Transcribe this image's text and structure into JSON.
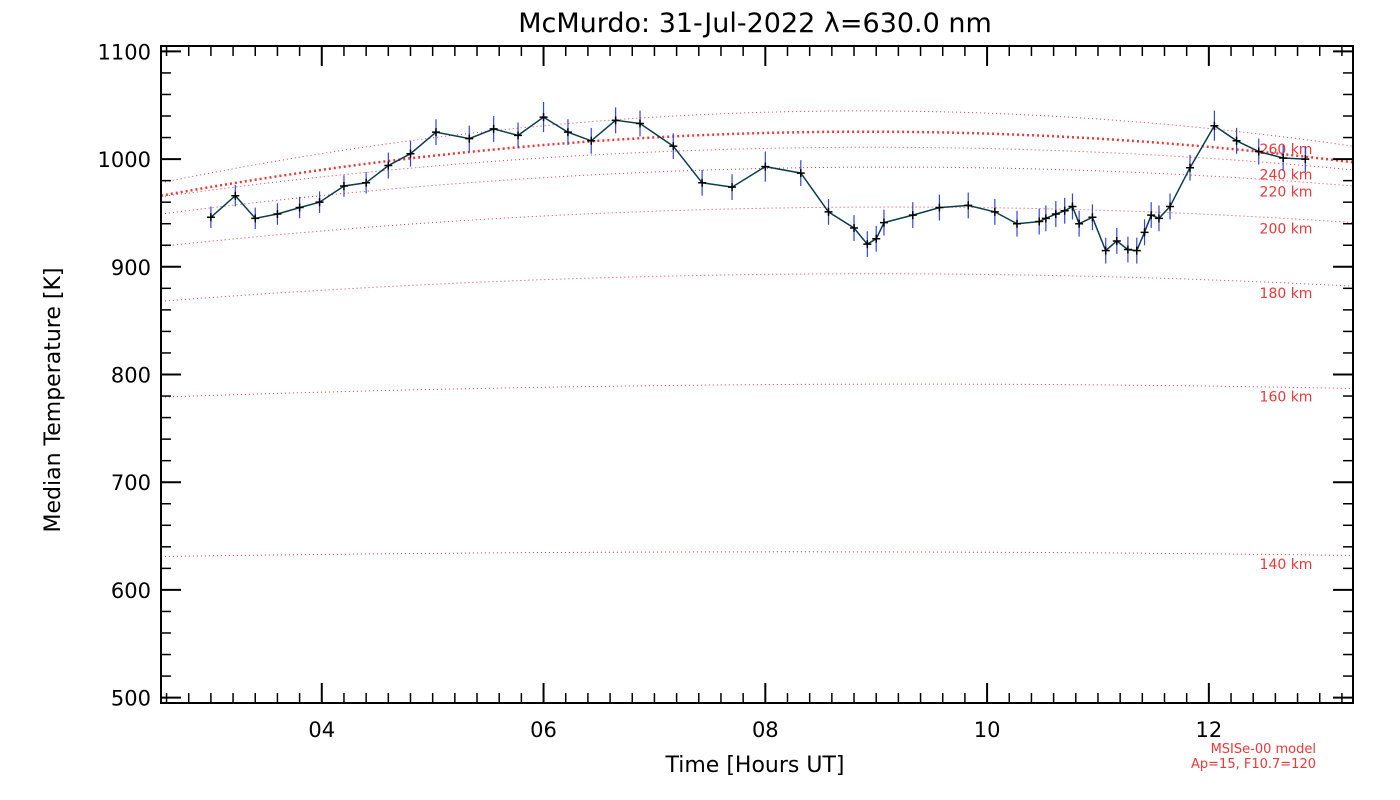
{
  "chart_data": {
    "type": "line",
    "title": "McMurdo: 31-Jul-2022 λ=630.0 nm",
    "xlabel": "Time [Hours UT]",
    "ylabel": "Median Temperature [K]",
    "xlim": [
      2.55,
      13.3
    ],
    "ylim": [
      495,
      1105
    ],
    "xticks": [
      4,
      6,
      8,
      10,
      12
    ],
    "xtick_labels": [
      "04",
      "06",
      "08",
      "10",
      "12"
    ],
    "yticks": [
      500,
      600,
      700,
      800,
      900,
      1000,
      1100
    ],
    "ytick_labels": [
      "500",
      "600",
      "700",
      "800",
      "900",
      "1000",
      "1100"
    ],
    "grid": false,
    "colors": {
      "data_line": "#0b3d4f",
      "error_bar": "#3344dd",
      "marker": "#000000",
      "model": "#e8383a"
    },
    "series": [
      {
        "x": [
          3.0,
          3.22,
          3.4,
          3.6,
          3.8,
          3.98,
          4.2,
          4.4,
          4.6,
          4.8,
          5.03,
          5.33,
          5.55,
          5.77,
          6.0,
          6.22,
          6.43,
          6.65,
          6.87,
          7.17,
          7.43,
          7.7,
          8.0,
          8.32,
          8.57,
          8.8,
          8.92,
          9.0,
          9.07,
          9.33,
          9.57,
          9.83,
          10.07,
          10.27,
          10.47,
          10.53,
          10.62,
          10.7,
          10.77,
          10.83,
          10.95,
          11.07,
          11.17,
          11.27,
          11.35,
          11.42,
          11.48,
          11.55,
          11.65,
          11.83,
          12.05,
          12.25,
          12.45,
          12.67,
          12.87
        ],
        "y": [
          946,
          966,
          945,
          949,
          955,
          960,
          975,
          978,
          994,
          1005,
          1025,
          1019,
          1028,
          1022,
          1039,
          1025,
          1017,
          1036,
          1033,
          1012,
          978,
          974,
          993,
          987,
          951,
          936,
          921,
          926,
          941,
          948,
          955,
          957,
          951,
          940,
          942,
          945,
          949,
          952,
          956,
          940,
          946,
          915,
          924,
          916,
          915,
          932,
          948,
          945,
          956,
          992,
          1031,
          1017,
          1007,
          1001,
          1000
        ],
        "err": [
          10,
          10,
          10,
          10,
          10,
          10,
          10,
          10,
          12,
          12,
          12,
          12,
          12,
          12,
          14,
          12,
          12,
          12,
          12,
          12,
          12,
          12,
          14,
          12,
          12,
          12,
          12,
          12,
          12,
          12,
          12,
          12,
          12,
          12,
          12,
          12,
          12,
          12,
          12,
          12,
          12,
          12,
          12,
          12,
          12,
          12,
          12,
          12,
          12,
          12,
          14,
          12,
          12,
          12,
          12
        ]
      }
    ],
    "model_curves": [
      {
        "label": "140 km",
        "x": [
          2.55,
          9.9,
          13.3
        ],
        "y": [
          631,
          635,
          632
        ]
      },
      {
        "label": "160 km",
        "x": [
          2.55,
          9.9,
          13.3
        ],
        "y": [
          779,
          791,
          787
        ]
      },
      {
        "label": "180 km",
        "x": [
          2.55,
          9.9,
          13.3
        ],
        "y": [
          868,
          893,
          882
        ]
      },
      {
        "label": "200 km",
        "x": [
          2.55,
          9.9,
          13.3
        ],
        "y": [
          919,
          955,
          941
        ]
      },
      {
        "label": "220 km",
        "x": [
          2.55,
          9.9,
          13.3
        ],
        "y": [
          949,
          992,
          975
        ]
      },
      {
        "label": "240 km",
        "x": [
          2.55,
          9.9,
          13.3
        ],
        "y": [
          965,
          1010,
          990
        ]
      },
      {
        "label": "260 km",
        "x": [
          2.55,
          9.9,
          13.3
        ],
        "y": [
          978,
          1043,
          1012
        ]
      }
    ],
    "model_mean": {
      "x": [
        2.55,
        9.9,
        13.3
      ],
      "y": [
        966,
        1024,
        997
      ]
    },
    "annotations": [
      "MSISe-00 model",
      "Ap=15, F10.7=120"
    ]
  }
}
